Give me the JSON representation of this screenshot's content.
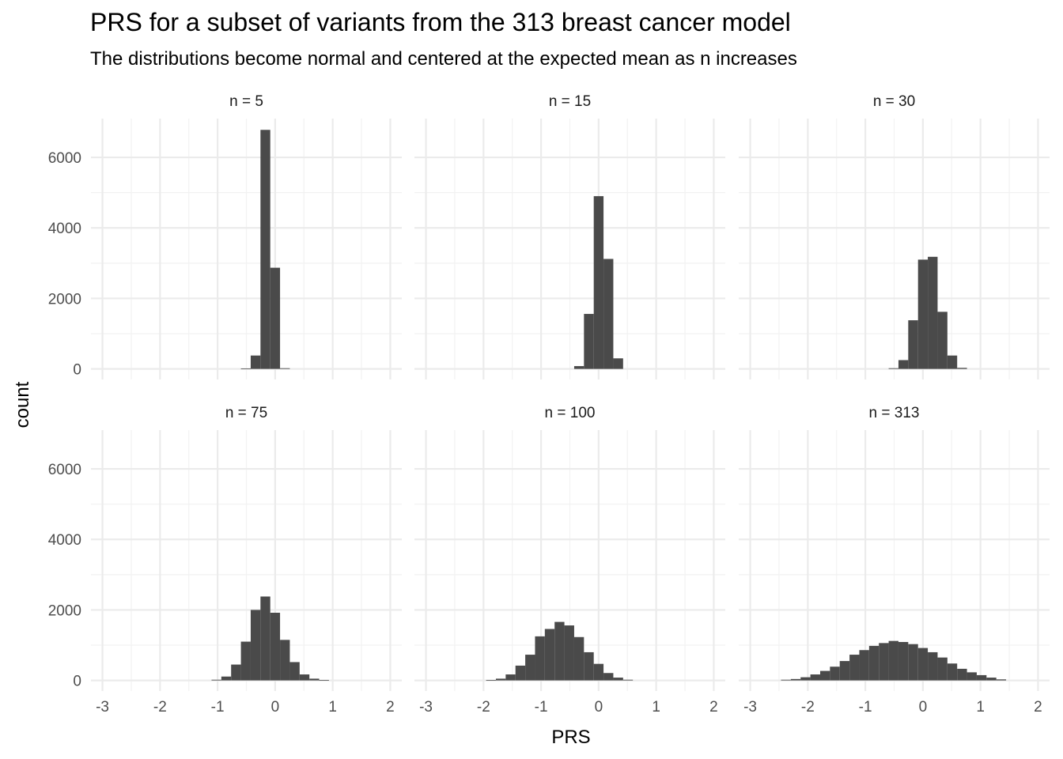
{
  "chart_data": {
    "type": "bar",
    "title": "PRS for a subset of variants from the 313 breast cancer model",
    "subtitle": "The distributions become normal and centered at the expected mean as n increases",
    "xlabel": "PRS",
    "ylabel": "count",
    "xlim": [
      -3.2,
      2.2
    ],
    "ylim": [
      -300,
      7100
    ],
    "x_ticks": [
      -3,
      -2,
      -1,
      0,
      1,
      2
    ],
    "x_tick_labels": [
      "-3",
      "-2",
      "-1",
      "0",
      "1",
      "2"
    ],
    "y_ticks": [
      0,
      2000,
      4000,
      6000
    ],
    "y_tick_labels": [
      "0",
      "2000",
      "4000",
      "6000"
    ],
    "grid": true,
    "bar_color": "#4a4a4a",
    "grid_color": "#ebebeb",
    "bin_width": 0.17,
    "panels": [
      {
        "label": "n = 5",
        "bins": [
          {
            "x": -0.51,
            "count": 10
          },
          {
            "x": -0.34,
            "count": 380
          },
          {
            "x": -0.17,
            "count": 6780
          },
          {
            "x": 0.0,
            "count": 2870
          },
          {
            "x": 0.17,
            "count": 20
          }
        ]
      },
      {
        "label": "n = 15",
        "bins": [
          {
            "x": -0.34,
            "count": 80
          },
          {
            "x": -0.17,
            "count": 1560
          },
          {
            "x": 0.0,
            "count": 4900
          },
          {
            "x": 0.17,
            "count": 3120
          },
          {
            "x": 0.34,
            "count": 300
          }
        ]
      },
      {
        "label": "n = 30",
        "bins": [
          {
            "x": -0.51,
            "count": 20
          },
          {
            "x": -0.34,
            "count": 250
          },
          {
            "x": -0.17,
            "count": 1380
          },
          {
            "x": 0.0,
            "count": 3100
          },
          {
            "x": 0.17,
            "count": 3180
          },
          {
            "x": 0.34,
            "count": 1620
          },
          {
            "x": 0.51,
            "count": 380
          },
          {
            "x": 0.68,
            "count": 30
          }
        ]
      },
      {
        "label": "n = 75",
        "bins": [
          {
            "x": -1.02,
            "count": 20
          },
          {
            "x": -0.85,
            "count": 110
          },
          {
            "x": -0.68,
            "count": 450
          },
          {
            "x": -0.51,
            "count": 1100
          },
          {
            "x": -0.34,
            "count": 2000
          },
          {
            "x": -0.17,
            "count": 2380
          },
          {
            "x": 0.0,
            "count": 1920
          },
          {
            "x": 0.17,
            "count": 1150
          },
          {
            "x": 0.34,
            "count": 520
          },
          {
            "x": 0.51,
            "count": 170
          },
          {
            "x": 0.68,
            "count": 50
          },
          {
            "x": 0.85,
            "count": 10
          }
        ]
      },
      {
        "label": "n = 100",
        "bins": [
          {
            "x": -1.87,
            "count": 10
          },
          {
            "x": -1.7,
            "count": 50
          },
          {
            "x": -1.53,
            "count": 170
          },
          {
            "x": -1.36,
            "count": 420
          },
          {
            "x": -1.19,
            "count": 730
          },
          {
            "x": -1.02,
            "count": 1250
          },
          {
            "x": -0.85,
            "count": 1460
          },
          {
            "x": -0.68,
            "count": 1660
          },
          {
            "x": -0.51,
            "count": 1560
          },
          {
            "x": -0.34,
            "count": 1230
          },
          {
            "x": -0.17,
            "count": 800
          },
          {
            "x": 0.0,
            "count": 470
          },
          {
            "x": 0.17,
            "count": 210
          },
          {
            "x": 0.34,
            "count": 80
          },
          {
            "x": 0.51,
            "count": 20
          }
        ]
      },
      {
        "label": "n = 313",
        "bins": [
          {
            "x": -2.38,
            "count": 20
          },
          {
            "x": -2.21,
            "count": 40
          },
          {
            "x": -2.04,
            "count": 90
          },
          {
            "x": -1.87,
            "count": 170
          },
          {
            "x": -1.7,
            "count": 270
          },
          {
            "x": -1.53,
            "count": 390
          },
          {
            "x": -1.36,
            "count": 550
          },
          {
            "x": -1.19,
            "count": 730
          },
          {
            "x": -1.02,
            "count": 860
          },
          {
            "x": -0.85,
            "count": 980
          },
          {
            "x": -0.68,
            "count": 1060
          },
          {
            "x": -0.51,
            "count": 1120
          },
          {
            "x": -0.34,
            "count": 1090
          },
          {
            "x": -0.17,
            "count": 1030
          },
          {
            "x": 0.0,
            "count": 920
          },
          {
            "x": 0.17,
            "count": 800
          },
          {
            "x": 0.34,
            "count": 650
          },
          {
            "x": 0.51,
            "count": 480
          },
          {
            "x": 0.68,
            "count": 330
          },
          {
            "x": 0.85,
            "count": 230
          },
          {
            "x": 1.02,
            "count": 150
          },
          {
            "x": 1.19,
            "count": 80
          },
          {
            "x": 1.36,
            "count": 30
          }
        ]
      }
    ]
  }
}
